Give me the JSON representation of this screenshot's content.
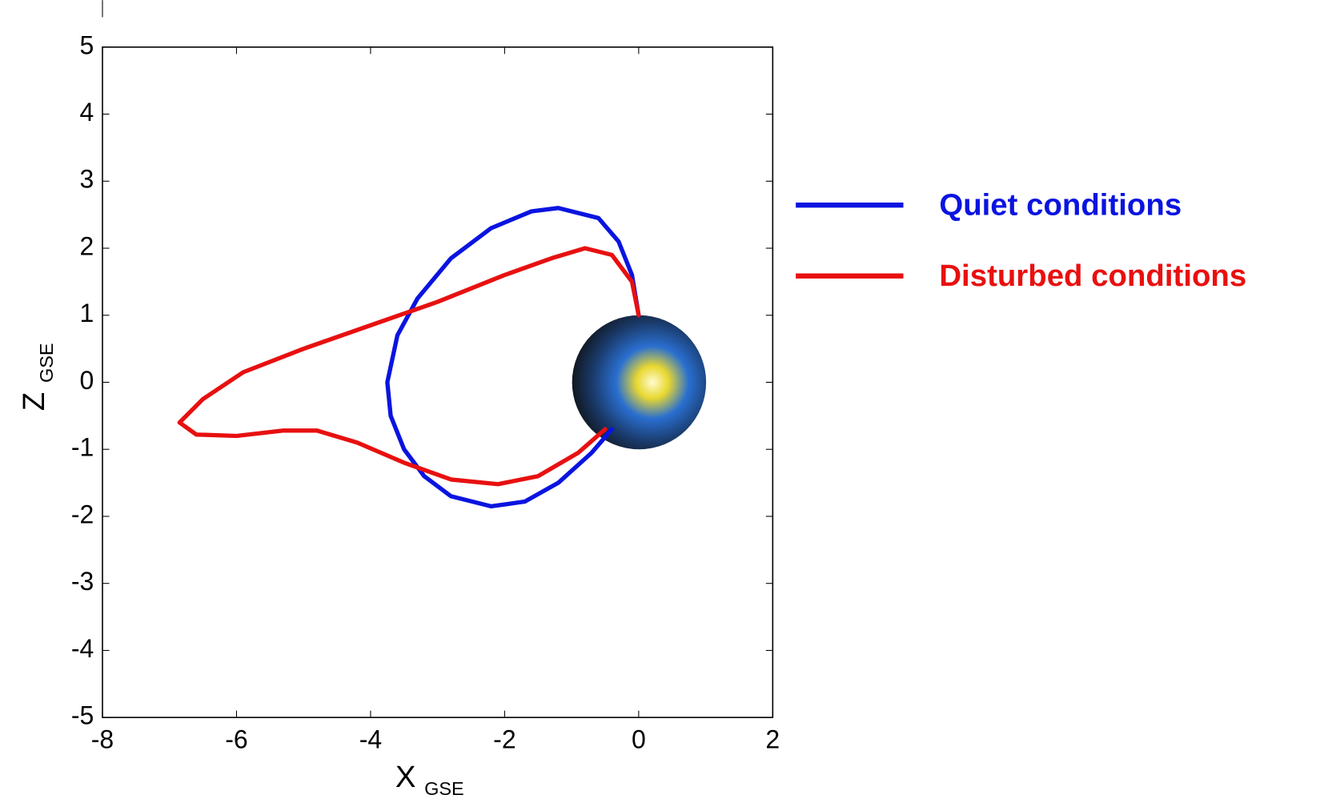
{
  "chart_data": {
    "type": "line",
    "xlabel": "X",
    "xlabel_sub": "GSE",
    "ylabel": "Z",
    "ylabel_sub": "GSE",
    "xlim": [
      -8,
      2
    ],
    "ylim": [
      -5,
      5
    ],
    "xticks": [
      -8,
      -6,
      -4,
      -2,
      0,
      2
    ],
    "yticks": [
      -5,
      -4,
      -3,
      -2,
      -1,
      0,
      1,
      2,
      3,
      4,
      5
    ],
    "legend": "right",
    "series": [
      {
        "name": "Quiet conditions",
        "color": "#0a14e0",
        "x": [
          0,
          -0.1,
          -0.3,
          -0.6,
          -1.2,
          -1.6,
          -2.2,
          -2.8,
          -3.3,
          -3.6,
          -3.75,
          -3.7,
          -3.5,
          -3.2,
          -2.8,
          -2.2,
          -1.7,
          -1.2,
          -0.7,
          -0.4
        ],
        "values": [
          1.0,
          1.6,
          2.1,
          2.45,
          2.6,
          2.55,
          2.3,
          1.85,
          1.25,
          0.7,
          0,
          -0.5,
          -1.0,
          -1.4,
          -1.7,
          -1.85,
          -1.78,
          -1.5,
          -1.05,
          -0.7
        ]
      },
      {
        "name": "Disturbed conditions",
        "color": "#e81010",
        "x": [
          0,
          -0.1,
          -0.4,
          -0.8,
          -1.3,
          -2,
          -3,
          -4,
          -5,
          -5.9,
          -6.5,
          -6.85,
          -6.6,
          -6,
          -5.3,
          -4.8,
          -4.2,
          -3.5,
          -2.8,
          -2.1,
          -1.5,
          -0.9,
          -0.5
        ],
        "values": [
          1.0,
          1.5,
          1.9,
          2.0,
          1.85,
          1.6,
          1.2,
          0.85,
          0.5,
          0.15,
          -0.25,
          -0.6,
          -0.78,
          -0.8,
          -0.72,
          -0.72,
          -0.9,
          -1.2,
          -1.45,
          -1.52,
          -1.4,
          -1.05,
          -0.7
        ]
      }
    ]
  }
}
